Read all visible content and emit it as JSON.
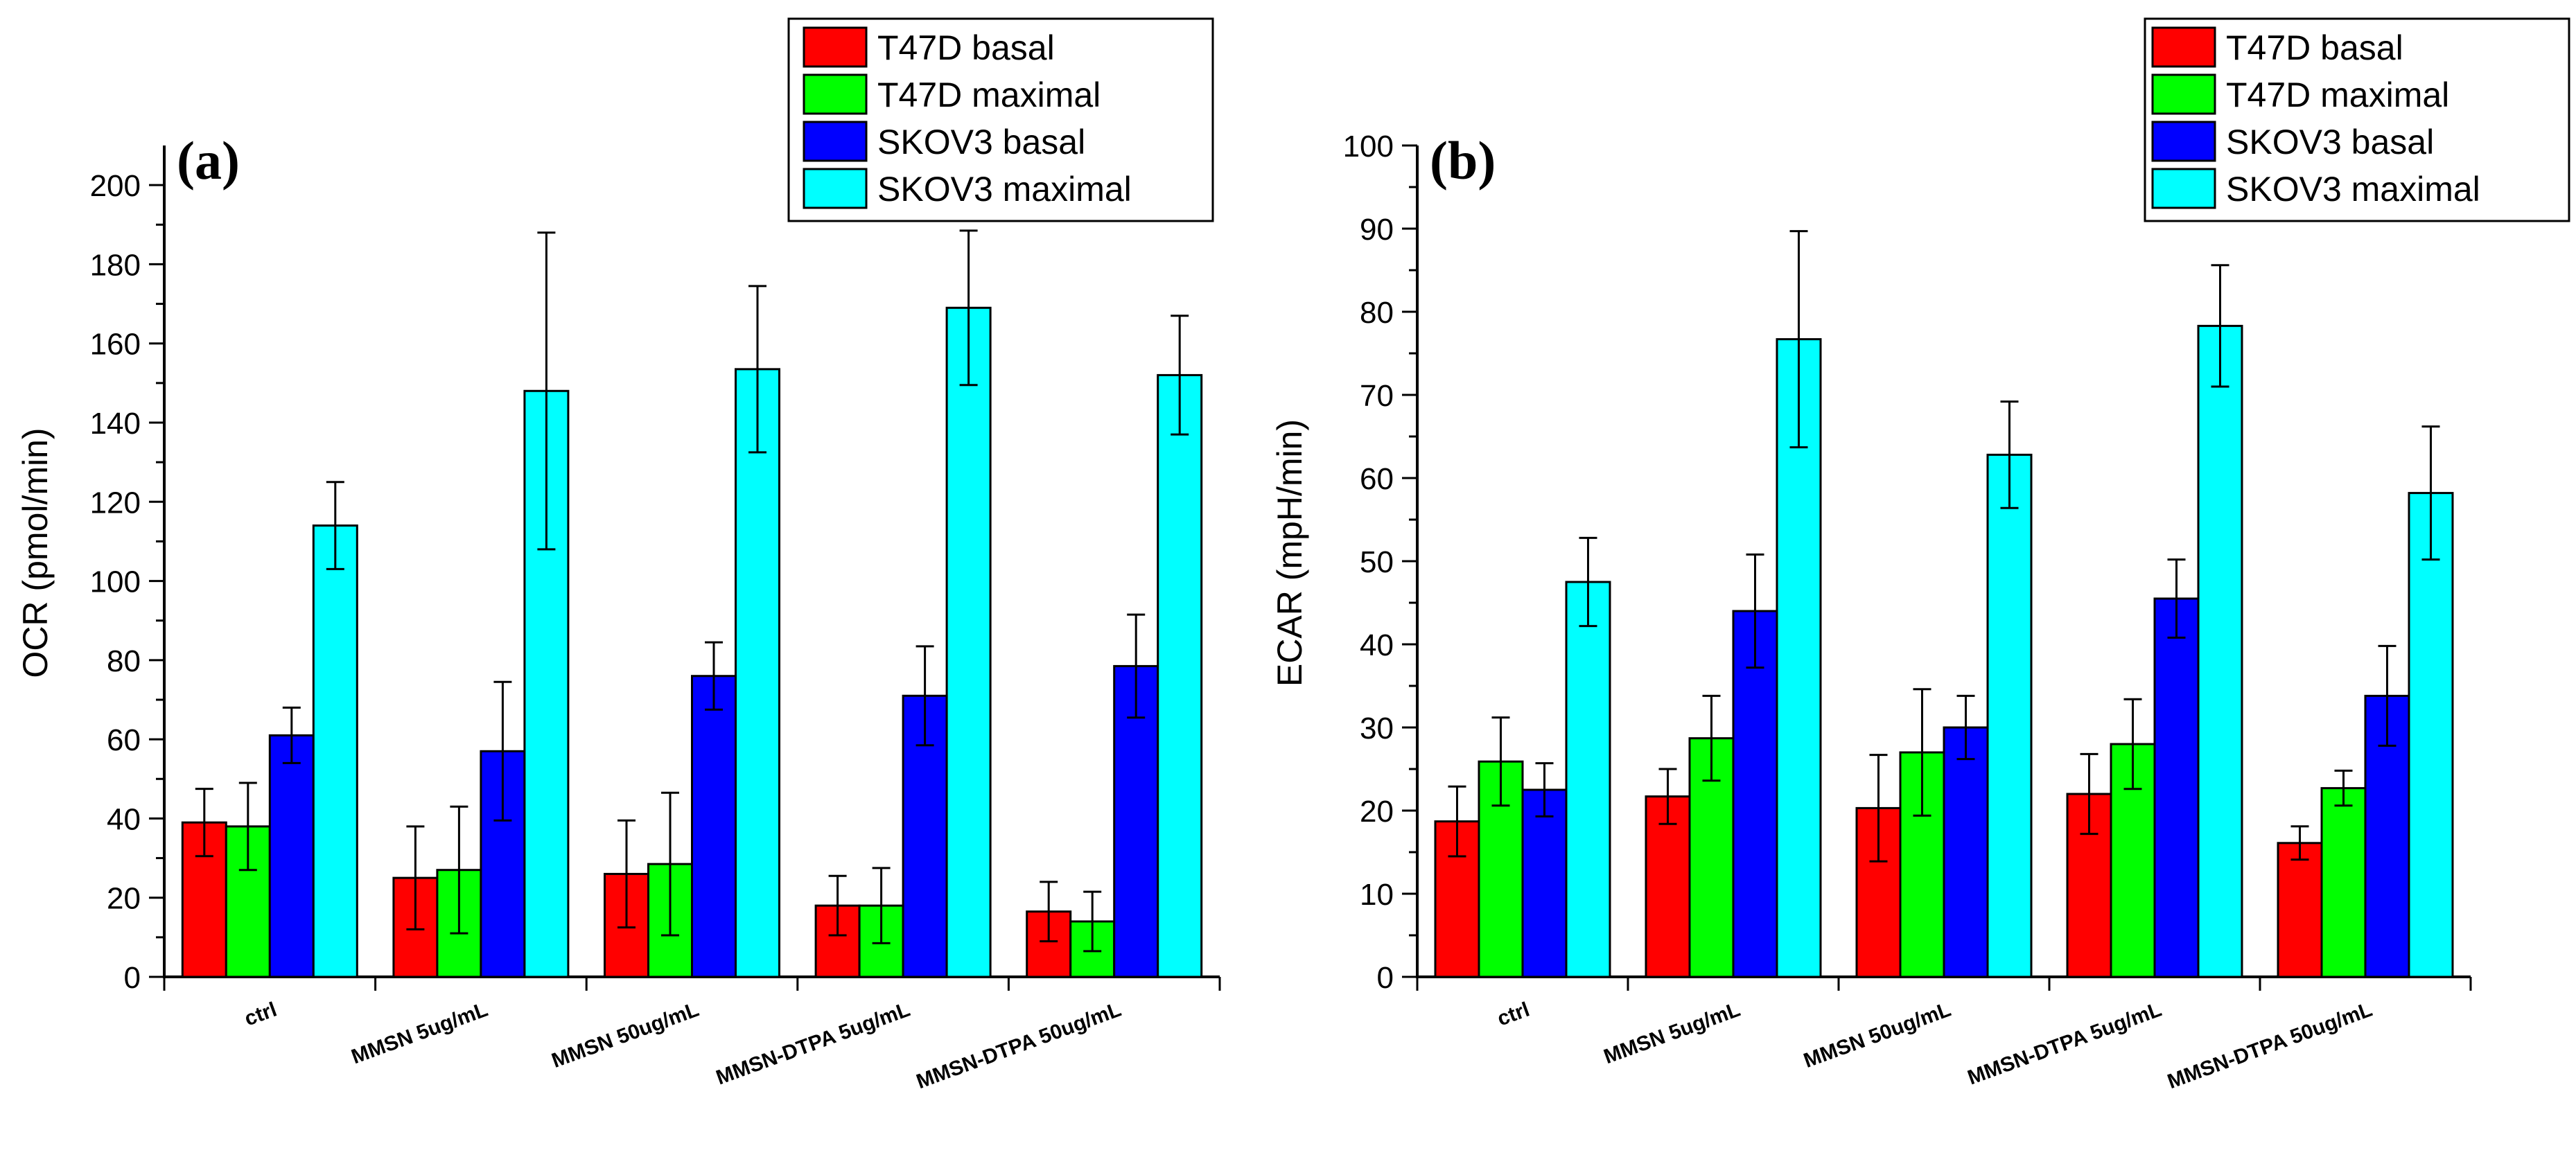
{
  "chart_data": [
    {
      "type": "bar",
      "panel_label": "(a)",
      "title": "",
      "xlabel": "",
      "ylabel": "OCR (pmol/min)",
      "ylim": [
        0,
        210
      ],
      "yticks": [
        0,
        20,
        40,
        60,
        80,
        100,
        120,
        140,
        160,
        180,
        200
      ],
      "categories": [
        "ctrl",
        "MMSN 5ug/mL",
        "MMSN 50ug/mL",
        "MMSN-DTPA 5ug/mL",
        "MMSN-DTPA 50ug/mL"
      ],
      "legend_position": "top-right",
      "series": [
        {
          "name": "T47D basal",
          "color": "#ff0000",
          "values": [
            39,
            25,
            26,
            18,
            16.5
          ],
          "errors": [
            8.5,
            13,
            13.5,
            7.5,
            7.5
          ]
        },
        {
          "name": "T47D maximal",
          "color": "#00ff00",
          "values": [
            38,
            27,
            28.5,
            18,
            14
          ],
          "errors": [
            11,
            16,
            18,
            9.5,
            7.5
          ]
        },
        {
          "name": "SKOV3 basal",
          "color": "#0000ff",
          "values": [
            61,
            57,
            76,
            71,
            78.5
          ],
          "errors": [
            7,
            17.5,
            8.5,
            12.5,
            13
          ]
        },
        {
          "name": "SKOV3 maximal",
          "color": "#00ffff",
          "values": [
            114,
            148,
            153.5,
            169,
            152
          ],
          "errors": [
            11,
            40,
            21,
            19.5,
            15
          ]
        }
      ]
    },
    {
      "type": "bar",
      "panel_label": "(b)",
      "title": "",
      "xlabel": "",
      "ylabel": "ECAR (mpH/min)",
      "ylim": [
        0,
        100
      ],
      "yticks": [
        0,
        10,
        20,
        30,
        40,
        50,
        60,
        70,
        80,
        90,
        100
      ],
      "categories": [
        "ctrl",
        "MMSN 5ug/mL",
        "MMSN 50ug/mL",
        "MMSN-DTPA 5ug/mL",
        "MMSN-DTPA 50ug/mL"
      ],
      "legend_position": "top-right",
      "series": [
        {
          "name": "T47D basal",
          "color": "#ff0000",
          "values": [
            18.7,
            21.7,
            20.3,
            22,
            16.1
          ],
          "errors": [
            4.2,
            3.3,
            6.4,
            4.8,
            2
          ]
        },
        {
          "name": "T47D maximal",
          "color": "#00ff00",
          "values": [
            25.9,
            28.7,
            27,
            28,
            22.7
          ],
          "errors": [
            5.3,
            5.1,
            7.6,
            5.4,
            2.1
          ]
        },
        {
          "name": "SKOV3 basal",
          "color": "#0000ff",
          "values": [
            22.5,
            44,
            30,
            45.5,
            33.8
          ],
          "errors": [
            3.2,
            6.8,
            3.8,
            4.7,
            6
          ]
        },
        {
          "name": "SKOV3 maximal",
          "color": "#00ffff",
          "values": [
            47.5,
            76.7,
            62.8,
            78.3,
            58.2
          ],
          "errors": [
            5.3,
            13,
            6.4,
            7.3,
            8
          ]
        }
      ]
    }
  ]
}
